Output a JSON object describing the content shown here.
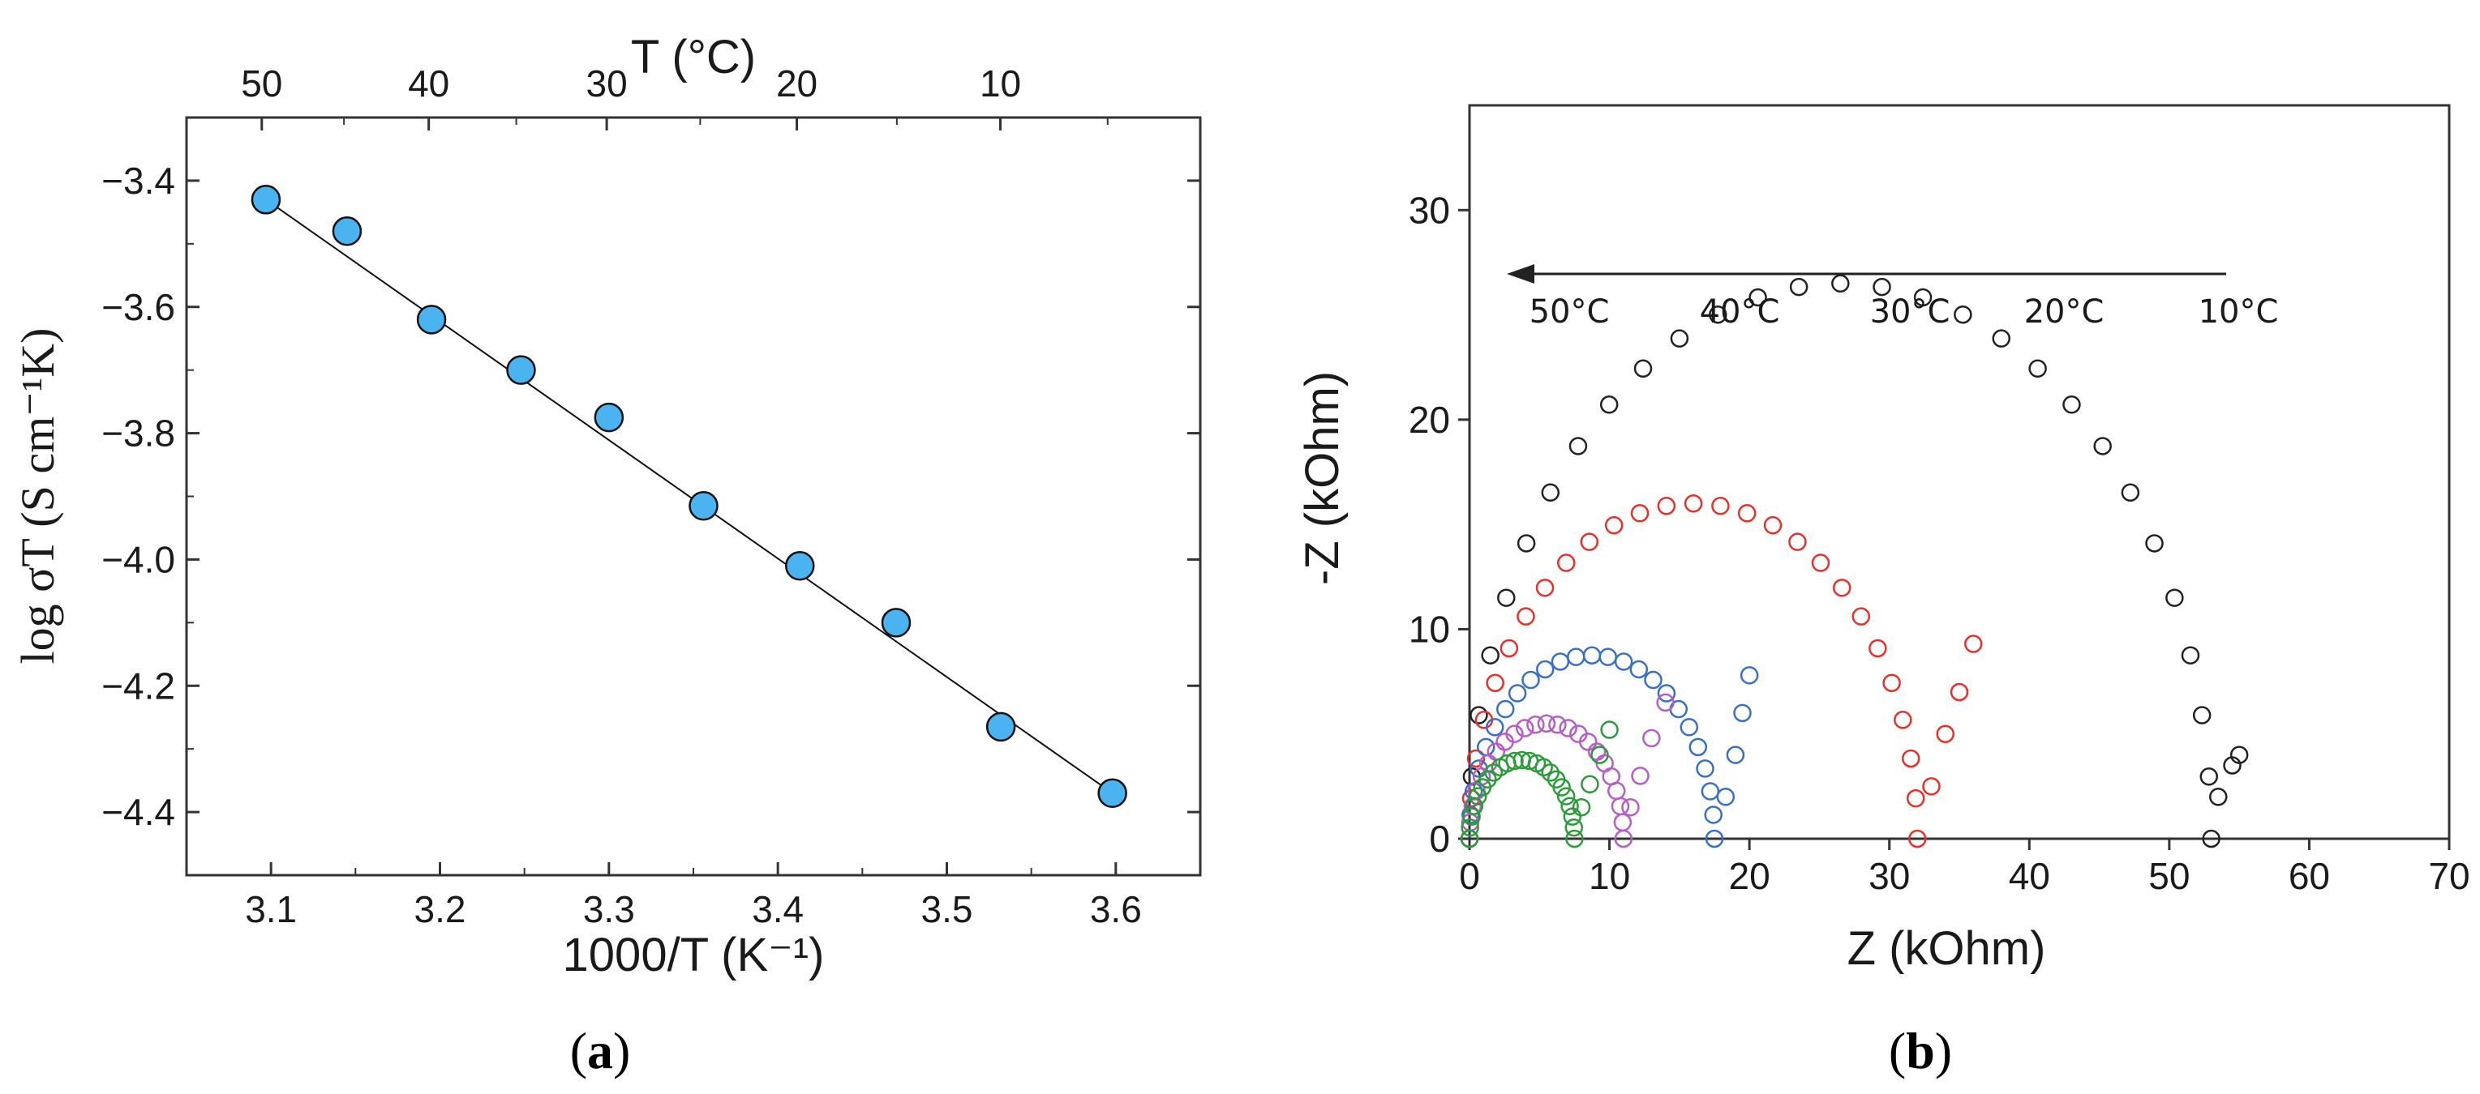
{
  "chart_data": [
    {
      "type": "scatter",
      "panel_label": "a",
      "xlabel": "1000/T (K⁻¹)",
      "ylabel": "log σT (S cm⁻¹K)",
      "top_axis_title": "T (°C)",
      "xlim": [
        3.05,
        3.65
      ],
      "ylim": [
        -4.5,
        -3.3
      ],
      "x_ticks": [
        "3.1",
        "3.2",
        "3.3",
        "3.4",
        "3.5",
        "3.6"
      ],
      "y_ticks": [
        "-3.4",
        "-3.6",
        "-3.8",
        "-4.0",
        "-4.2",
        "-4.4"
      ],
      "top_ticks": [
        "50",
        "40",
        "30",
        "20",
        "10"
      ],
      "top_tick_temps_c": [
        50,
        40,
        30,
        20,
        10
      ],
      "series": [
        {
          "name": "data",
          "color": "#4ab3f0",
          "x": [
            3.097,
            3.145,
            3.195,
            3.248,
            3.3,
            3.356,
            3.413,
            3.47,
            3.532,
            3.598
          ],
          "y": [
            -3.43,
            -3.48,
            -3.62,
            -3.7,
            -3.775,
            -3.915,
            -4.01,
            -4.1,
            -4.265,
            -4.37
          ]
        }
      ],
      "fit_line": {
        "x": [
          3.097,
          3.598
        ],
        "y": [
          -3.43,
          -4.37
        ]
      }
    },
    {
      "type": "scatter",
      "panel_label": "b",
      "xlabel": "Z (kOhm)",
      "ylabel": "-Z (kOhm)",
      "xlim": [
        0,
        70
      ],
      "ylim": [
        0,
        35
      ],
      "x_ticks": [
        "0",
        "10",
        "20",
        "30",
        "40",
        "50",
        "60",
        "70"
      ],
      "y_ticks": [
        "0",
        "10",
        "20",
        "30"
      ],
      "arrow_labels": [
        "50°C",
        "40°C",
        "30°C",
        "20°C",
        "10°C"
      ],
      "series": [
        {
          "name": "10°C",
          "color": "#222222",
          "R": 53,
          "r_tail_start": 53,
          "tail": [
            [
              53.5,
              2
            ],
            [
              54.5,
              3.5
            ],
            [
              55,
              4
            ]
          ]
        },
        {
          "name": "20°C",
          "color": "#e8302a",
          "R": 32,
          "tail": [
            [
              33,
              2.5
            ],
            [
              34,
              5
            ],
            [
              35,
              7
            ],
            [
              36,
              9.3
            ]
          ]
        },
        {
          "name": "30°C",
          "color": "#3a6fc4",
          "R": 17.5,
          "tail": [
            [
              18.3,
              2
            ],
            [
              19,
              4
            ],
            [
              19.5,
              6
            ],
            [
              20,
              7.8
            ]
          ]
        },
        {
          "name": "40°C",
          "color": "#b45ec6",
          "R": 11,
          "tail": [
            [
              11.5,
              1.5
            ],
            [
              12.2,
              3
            ],
            [
              13,
              4.8
            ],
            [
              14,
              6.5
            ]
          ]
        },
        {
          "name": "50°C",
          "color": "#2d9a3c",
          "R": 7.5,
          "tail": [
            [
              8,
              1.5
            ],
            [
              8.6,
              2.6
            ],
            [
              9.3,
              4
            ],
            [
              10,
              5.2
            ]
          ]
        }
      ]
    }
  ]
}
